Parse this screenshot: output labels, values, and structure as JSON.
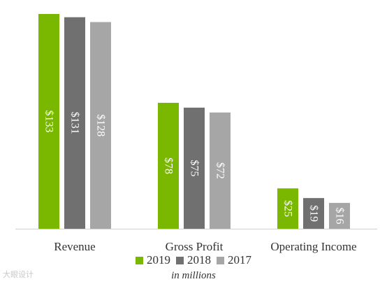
{
  "chart_data": {
    "type": "bar",
    "categories": [
      "Revenue",
      "Gross Profit",
      "Operating Income"
    ],
    "series": [
      {
        "name": "2019",
        "color": "#7ab800",
        "values": [
          133,
          78,
          25
        ],
        "labels": [
          "$133",
          "$78",
          "$25"
        ]
      },
      {
        "name": "2018",
        "color": "#707070",
        "values": [
          131,
          75,
          19
        ],
        "labels": [
          "$131",
          "$75",
          "$19"
        ]
      },
      {
        "name": "2017",
        "color": "#a6a6a6",
        "values": [
          128,
          72,
          16
        ],
        "labels": [
          "$128",
          "$72",
          "$16"
        ]
      }
    ],
    "ylim": [
      0,
      133
    ],
    "grid": false,
    "legend_position": "bottom",
    "note": "in millions"
  },
  "watermark": "大眼设计"
}
